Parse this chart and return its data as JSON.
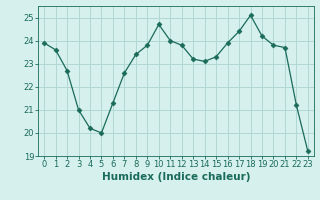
{
  "x": [
    0,
    1,
    2,
    3,
    4,
    5,
    6,
    7,
    8,
    9,
    10,
    11,
    12,
    13,
    14,
    15,
    16,
    17,
    18,
    19,
    20,
    21,
    22,
    23
  ],
  "y": [
    23.9,
    23.6,
    22.7,
    21.0,
    20.2,
    20.0,
    21.3,
    22.6,
    23.4,
    23.8,
    24.7,
    24.0,
    23.8,
    23.2,
    23.1,
    23.3,
    23.9,
    24.4,
    25.1,
    24.2,
    23.8,
    23.7,
    21.2,
    19.2
  ],
  "line_color": "#1a6b5a",
  "marker": "D",
  "marker_size": 2.5,
  "bg_color": "#d6f0ee",
  "grid_color": "#b0d8d4",
  "xlabel": "Humidex (Indice chaleur)",
  "xlabel_fontsize": 7.5,
  "tick_fontsize": 6,
  "ylim": [
    19,
    25.5
  ],
  "yticks": [
    19,
    20,
    21,
    22,
    23,
    24,
    25
  ],
  "xlim": [
    -0.5,
    23.5
  ],
  "xticks": [
    0,
    1,
    2,
    3,
    4,
    5,
    6,
    7,
    8,
    9,
    10,
    11,
    12,
    13,
    14,
    15,
    16,
    17,
    18,
    19,
    20,
    21,
    22,
    23
  ]
}
